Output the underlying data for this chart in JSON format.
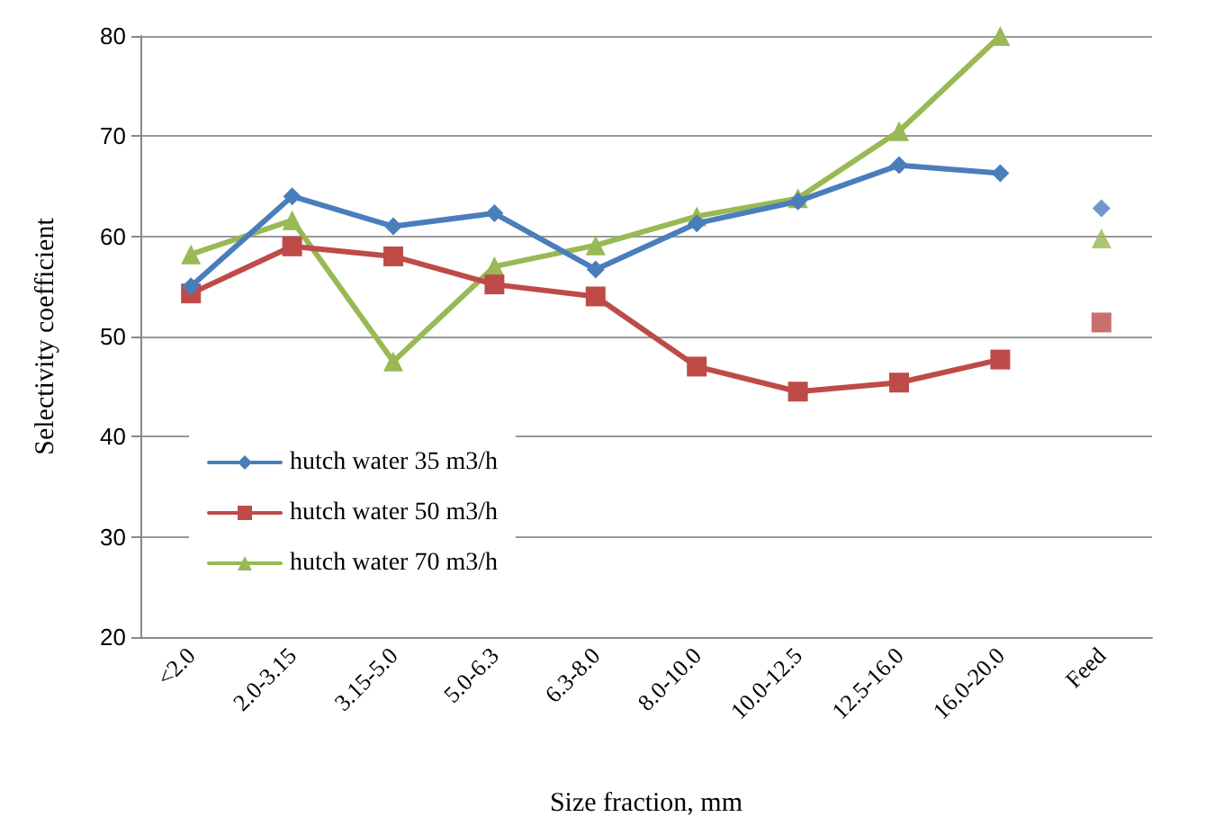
{
  "chart_data": {
    "type": "line",
    "xlabel": "Size fraction, mm",
    "ylabel": "Selectivity coefficient",
    "categories": [
      "<2.0",
      "2.0-3.15",
      "3.15-5.0",
      "5.0-6.3",
      "6.3-8.0",
      "8.0-10.0",
      "10.0-12.5",
      "12.5-16.0",
      "16.0-20.0",
      "Feed"
    ],
    "series": [
      {
        "name": "hutch water 35 m3/h",
        "color": "#4a7ebb",
        "marker": "diamond",
        "values": [
          55,
          64,
          61,
          62.3,
          56.7,
          61.3,
          63.5,
          67.1,
          66.3,
          null
        ]
      },
      {
        "name": "hutch water 50 m3/h",
        "color": "#be4b48",
        "marker": "square",
        "values": [
          54.3,
          59,
          58,
          55.2,
          54,
          47,
          44.5,
          45.4,
          47.7,
          null
        ]
      },
      {
        "name": "hutch water 70 m3/h",
        "color": "#98b954",
        "marker": "triangle",
        "values": [
          58.2,
          61.6,
          47.5,
          57,
          59.1,
          62,
          63.8,
          70.5,
          80,
          null
        ]
      },
      {
        "type": "scatter",
        "color": "#4a7ebb",
        "marker": "diamond",
        "x": [
          "Feed"
        ],
        "values": [
          62.8
        ]
      },
      {
        "type": "scatter",
        "color": "#be4b48",
        "marker": "square",
        "x": [
          "Feed"
        ],
        "values": [
          51.4
        ]
      },
      {
        "type": "scatter",
        "color": "#98b954",
        "marker": "triangle",
        "x": [
          "Feed"
        ],
        "values": [
          59.8
        ]
      }
    ],
    "ylim": [
      20,
      80
    ],
    "yticks": [
      20,
      30,
      40,
      50,
      60,
      70,
      80
    ],
    "grid": "y",
    "legend": "bottom left"
  }
}
